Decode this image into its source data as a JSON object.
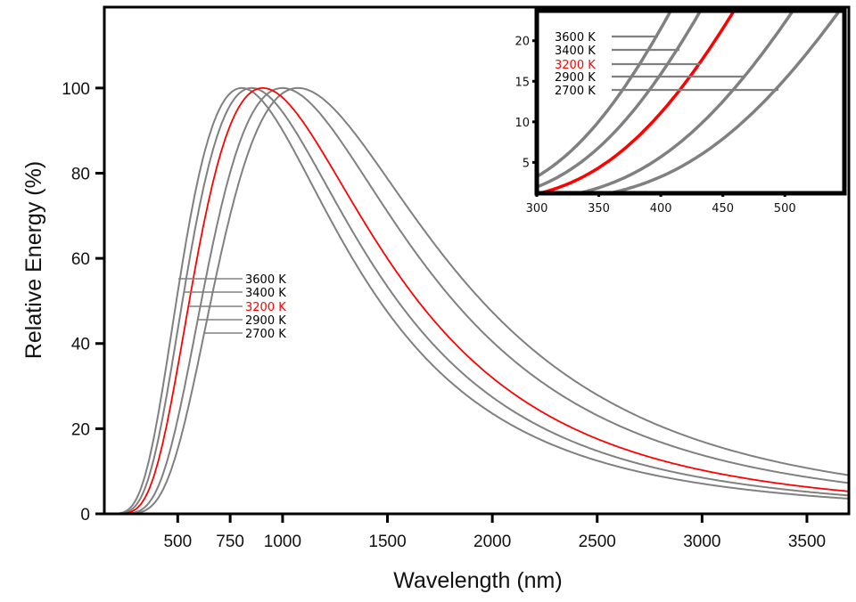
{
  "chart_data": [
    {
      "type": "line",
      "panel": "main",
      "title": "",
      "xlabel": "Wavelength (nm)",
      "ylabel": "Relative Energy (%)",
      "xlim": [
        150,
        3700
      ],
      "ylim": [
        0,
        119
      ],
      "x_ticks": [
        500,
        750,
        1000,
        1500,
        2000,
        2500,
        3000,
        3500
      ],
      "x_tick_labels": [
        "500",
        "750",
        "1000",
        "1500",
        "2000",
        "2500",
        "3000",
        "3500"
      ],
      "y_ticks": [
        0,
        20,
        40,
        60,
        80,
        100
      ],
      "y_tick_labels": [
        "0",
        "20",
        "40",
        "60",
        "80",
        "100"
      ],
      "grid": false,
      "legend_placement": "center-left",
      "model": "Planck blackbody spectral radiance normalized to 100% at peak",
      "sample_wavelengths": [
        300,
        400,
        500,
        750,
        1000,
        1500,
        2000,
        2500,
        3000,
        3500,
        3700
      ],
      "series": [
        {
          "name": "3600 K",
          "temperature": 3600,
          "color": "#808080",
          "peak_nm": 805,
          "values": [
            3.0,
            20.5,
            50.6,
            97.0,
            94.0,
            52.8,
            26.9,
            15.0,
            8.8,
            5.6,
            4.8
          ]
        },
        {
          "name": "3400 K",
          "temperature": 3400,
          "color": "#808080",
          "peak_nm": 852,
          "values": [
            1.9,
            15.6,
            42.6,
            93.6,
            97.1,
            56.4,
            29.3,
            16.5,
            9.8,
            6.2,
            5.3
          ]
        },
        {
          "name": "3200 K",
          "temperature": 3200,
          "color": "#ff0000",
          "peak_nm": 906,
          "values": [
            1.1,
            11.1,
            34.6,
            88.3,
            99.2,
            60.0,
            32.0,
            18.2,
            10.3,
            6.3,
            5.3
          ]
        },
        {
          "name": "2900 K",
          "temperature": 2900,
          "color": "#808080",
          "peak_nm": 999,
          "values": [
            0.4,
            5.8,
            22.7,
            77.0,
            100.0,
            66.4,
            36.6,
            21.2,
            12.8,
            8.3,
            7.1
          ]
        },
        {
          "name": "2700 K",
          "temperature": 2700,
          "color": "#808080",
          "peak_nm": 1073,
          "values": [
            0.2,
            3.4,
            15.8,
            67.6,
            98.9,
            71.0,
            40.3,
            23.7,
            14.5,
            9.4,
            8.1
          ]
        }
      ]
    },
    {
      "type": "line",
      "panel": "inset",
      "title": "",
      "xlabel": "",
      "ylabel": "",
      "xlim": [
        300,
        548
      ],
      "ylim": [
        1.2,
        23.7
      ],
      "x_ticks": [
        300,
        350,
        400,
        450,
        500
      ],
      "x_tick_labels": [
        "300",
        "350",
        "400",
        "450",
        "500"
      ],
      "y_ticks": [
        5,
        10,
        15,
        20
      ],
      "y_tick_labels": [
        "5",
        "10",
        "15",
        "20"
      ],
      "grid": false,
      "legend_placement": "top-left",
      "series_ref": [
        "3600 K",
        "3400 K",
        "3200 K",
        "2900 K",
        "2700 K"
      ]
    }
  ],
  "legend": {
    "items": [
      {
        "label": "3600 K",
        "color": "#000000",
        "line_color": "#808080"
      },
      {
        "label": "3400 K",
        "color": "#000000",
        "line_color": "#808080"
      },
      {
        "label": "3200 K",
        "color": "#ff0000",
        "line_color": "#808080"
      },
      {
        "label": "2900 K",
        "color": "#000000",
        "line_color": "#808080"
      },
      {
        "label": "2700 K",
        "color": "#000000",
        "line_color": "#808080"
      }
    ]
  },
  "colors": {
    "highlight": "#ff0000",
    "curve": "#808080",
    "axis": "#000000"
  }
}
